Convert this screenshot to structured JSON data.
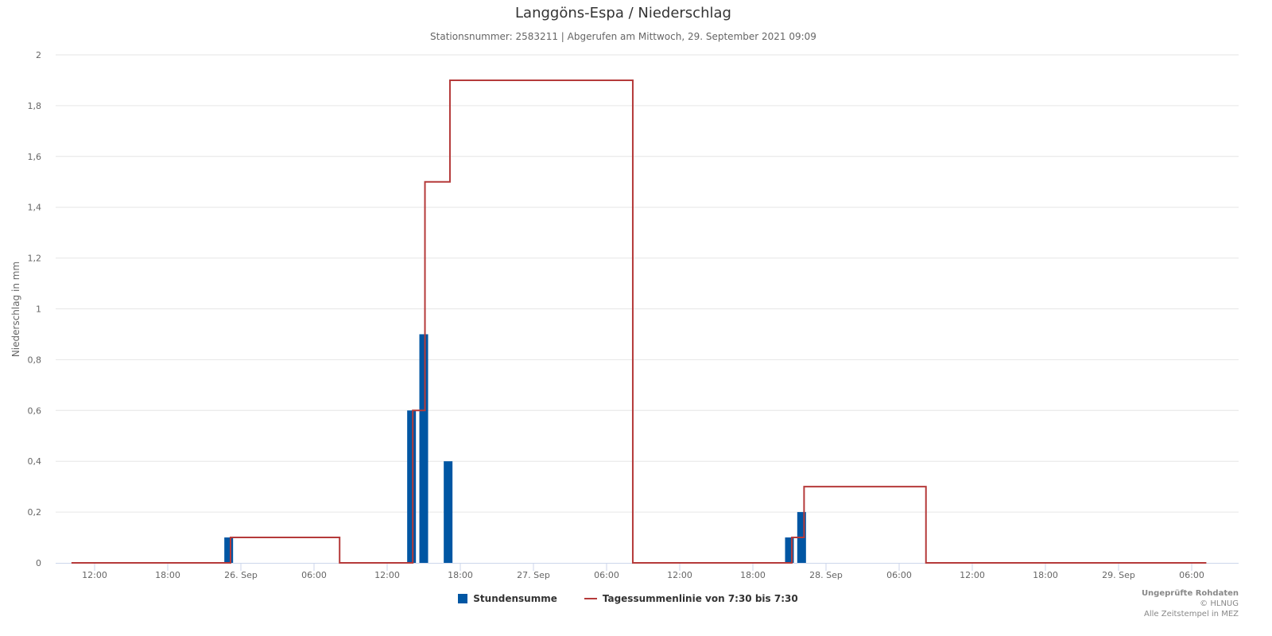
{
  "chart_data": {
    "type": "bar+line",
    "title": "Langgöns-Espa / Niederschlag",
    "subtitle": "Stationsnummer: 2583211 | Abgerufen am Mittwoch, 29. September 2021 09:09",
    "ylabel": "Niederschlag in mm",
    "xlabel": "",
    "ylim": [
      0,
      2
    ],
    "y_ticks": [
      "0",
      "0,2",
      "0,4",
      "0,6",
      "0,8",
      "1",
      "1,2",
      "1,4",
      "1,6",
      "1,8",
      "2"
    ],
    "x_unit": "hours relative to 26 Sep 00:00",
    "xlim": [
      -15,
      81
    ],
    "x_ticks": [
      {
        "h": -12,
        "label": "12:00"
      },
      {
        "h": -6,
        "label": "18:00"
      },
      {
        "h": 0,
        "label": "26. Sep"
      },
      {
        "h": 6,
        "label": "06:00"
      },
      {
        "h": 12,
        "label": "12:00"
      },
      {
        "h": 18,
        "label": "18:00"
      },
      {
        "h": 24,
        "label": "27. Sep"
      },
      {
        "h": 30,
        "label": "06:00"
      },
      {
        "h": 36,
        "label": "12:00"
      },
      {
        "h": 42,
        "label": "18:00"
      },
      {
        "h": 48,
        "label": "28. Sep"
      },
      {
        "h": 54,
        "label": "06:00"
      },
      {
        "h": 60,
        "label": "12:00"
      },
      {
        "h": 66,
        "label": "18:00"
      },
      {
        "h": 72,
        "label": "29. Sep"
      },
      {
        "h": 78,
        "label": "06:00"
      }
    ],
    "grid": true,
    "legend_position": "bottom-center",
    "series": [
      {
        "name": "Stundensumme",
        "type": "bar",
        "color": "#0056a3",
        "points": [
          [
            -1,
            0.1
          ],
          [
            14,
            0.6
          ],
          [
            15,
            0.9
          ],
          [
            17,
            0.4
          ],
          [
            45,
            0.1
          ],
          [
            46,
            0.2
          ]
        ]
      },
      {
        "name": "Tagessummenlinie von 7:30 bis 7:30",
        "type": "step-line",
        "color": "#b53a3a",
        "points": [
          [
            -13.9,
            0
          ],
          [
            -0.85,
            0.1
          ],
          [
            8.1,
            0
          ],
          [
            14.1,
            0.6
          ],
          [
            15.1,
            1.5
          ],
          [
            17.15,
            1.9
          ],
          [
            32.15,
            0
          ],
          [
            45.2,
            0.1
          ],
          [
            46.2,
            0.3
          ],
          [
            56.2,
            0
          ],
          [
            79.2,
            0
          ]
        ]
      }
    ]
  },
  "credits": {
    "line1": "Ungeprüfte Rohdaten",
    "line2": "© HLNUG",
    "line3": "Alle Zeitstempel in MEZ"
  }
}
